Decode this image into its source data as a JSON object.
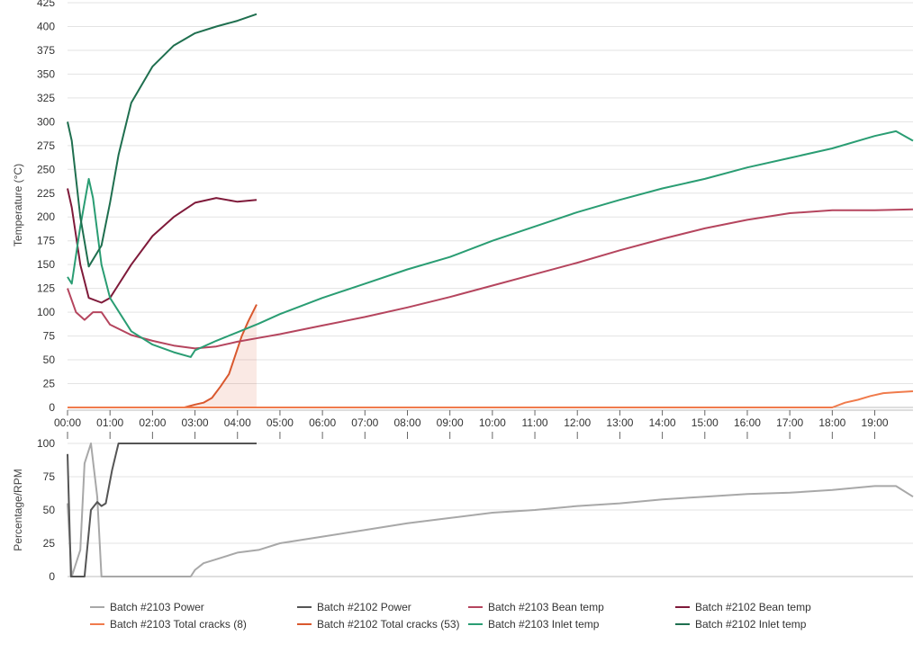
{
  "chart_data": [
    {
      "type": "line",
      "ylabel": "Temperature (°C)",
      "ylim": [
        0,
        425
      ],
      "yticks": [
        0,
        25,
        50,
        75,
        100,
        125,
        150,
        175,
        200,
        225,
        250,
        275,
        300,
        325,
        350,
        375,
        400,
        425
      ],
      "xlim_minutes": [
        0,
        19.9
      ],
      "xticks": [
        "00:00",
        "01:00",
        "02:00",
        "03:00",
        "04:00",
        "05:00",
        "06:00",
        "07:00",
        "08:00",
        "09:00",
        "10:00",
        "11:00",
        "12:00",
        "13:00",
        "14:00",
        "15:00",
        "16:00",
        "17:00",
        "18:00",
        "19:00"
      ],
      "grid": true,
      "series": [
        {
          "name": "Batch #2103 Bean temp",
          "color": "#b5455e",
          "x": [
            0,
            0.2,
            0.4,
            0.6,
            0.8,
            1,
            1.5,
            2,
            2.5,
            3,
            3.5,
            4,
            4.5,
            5,
            6,
            7,
            8,
            9,
            10,
            11,
            12,
            13,
            14,
            15,
            16,
            17,
            18,
            19,
            19.9
          ],
          "y": [
            125,
            100,
            92,
            100,
            100,
            87,
            76,
            70,
            65,
            62,
            64,
            69,
            73,
            77,
            86,
            95,
            105,
            116,
            128,
            140,
            152,
            165,
            177,
            188,
            197,
            204,
            207,
            207,
            208
          ]
        },
        {
          "name": "Batch #2102 Bean temp",
          "color": "#7f1a3a",
          "x": [
            0,
            0.1,
            0.3,
            0.5,
            0.8,
            1,
            1.5,
            2,
            2.5,
            3,
            3.5,
            4,
            4.45
          ],
          "y": [
            230,
            210,
            150,
            115,
            110,
            115,
            150,
            180,
            200,
            215,
            220,
            216,
            218
          ]
        },
        {
          "name": "Batch #2103 Inlet temp",
          "color": "#2a9d73",
          "x": [
            0,
            0.1,
            0.3,
            0.5,
            0.6,
            0.8,
            1,
            1.5,
            2,
            2.5,
            2.9,
            3,
            3.5,
            4,
            4.5,
            5,
            6,
            7,
            8,
            9,
            10,
            11,
            12,
            13,
            14,
            15,
            16,
            17,
            18,
            19,
            19.5,
            19.9
          ],
          "y": [
            137,
            130,
            190,
            240,
            220,
            150,
            115,
            80,
            66,
            58,
            53,
            60,
            70,
            79,
            88,
            98,
            115,
            130,
            145,
            158,
            175,
            190,
            205,
            218,
            230,
            240,
            252,
            262,
            272,
            285,
            290,
            280
          ]
        },
        {
          "name": "Batch #2102 Inlet temp",
          "color": "#1f6f4f",
          "x": [
            0,
            0.1,
            0.3,
            0.5,
            0.8,
            1,
            1.2,
            1.5,
            2,
            2.5,
            3,
            3.5,
            4,
            4.45
          ],
          "y": [
            300,
            280,
            200,
            148,
            170,
            215,
            265,
            320,
            358,
            380,
            393,
            400,
            406,
            413
          ]
        },
        {
          "name": "Batch #2103 Total cracks (8)",
          "color": "#f07b4c",
          "fill": false,
          "x": [
            0,
            17.9,
            18,
            18.3,
            18.6,
            18.9,
            19.2,
            19.5,
            19.9
          ],
          "y": [
            0,
            0,
            0,
            5,
            8,
            12,
            15,
            16,
            17
          ]
        },
        {
          "name": "Batch #2102 Total cracks (53)",
          "color": "#d9582e",
          "fill": true,
          "x": [
            0,
            2.75,
            3.0,
            3.2,
            3.4,
            3.6,
            3.8,
            3.95,
            4.1,
            4.25,
            4.45
          ],
          "y": [
            0,
            0,
            3,
            5,
            10,
            22,
            35,
            55,
            75,
            90,
            108
          ]
        }
      ]
    },
    {
      "type": "line",
      "ylabel": "Percentage/RPM",
      "ylim": [
        0,
        100
      ],
      "yticks": [
        0,
        25,
        50,
        75,
        100
      ],
      "xlim_minutes": [
        0,
        19.9
      ],
      "grid": true,
      "series": [
        {
          "name": "Batch #2103 Power",
          "color": "#a8a8a8",
          "x": [
            0,
            0.1,
            0.3,
            0.4,
            0.55,
            0.7,
            0.8,
            1,
            2,
            2.9,
            3,
            3.2,
            3.5,
            4,
            4.5,
            5,
            6,
            7,
            8,
            9,
            10,
            11,
            12,
            13,
            14,
            15,
            16,
            17,
            18,
            19,
            19.5,
            19.9
          ],
          "y": [
            55,
            0,
            20,
            85,
            100,
            60,
            0,
            0,
            0,
            0,
            5,
            10,
            13,
            18,
            20,
            25,
            30,
            35,
            40,
            44,
            48,
            50,
            53,
            55,
            58,
            60,
            62,
            63,
            65,
            68,
            68,
            60
          ]
        },
        {
          "name": "Batch #2102 Power",
          "color": "#555555",
          "x": [
            0,
            0.08,
            0.2,
            0.4,
            0.55,
            0.7,
            0.8,
            0.9,
            1.05,
            1.2,
            1.5,
            2,
            3,
            4.45
          ],
          "y": [
            92,
            0,
            0,
            0,
            50,
            56,
            53,
            55,
            80,
            100,
            100,
            100,
            100,
            100
          ]
        }
      ]
    }
  ],
  "legend": [
    {
      "label": "Batch #2103 Power",
      "color": "#a8a8a8"
    },
    {
      "label": "Batch #2102 Power",
      "color": "#555555"
    },
    {
      "label": "Batch #2103 Bean temp",
      "color": "#b5455e"
    },
    {
      "label": "Batch #2102 Bean temp",
      "color": "#7f1a3a"
    },
    {
      "label": "Batch #2103 Total cracks (8)",
      "color": "#f07b4c"
    },
    {
      "label": "Batch #2102 Total cracks (53)",
      "color": "#d9582e"
    },
    {
      "label": "Batch #2103 Inlet temp",
      "color": "#2a9d73"
    },
    {
      "label": "Batch #2102 Inlet temp",
      "color": "#1f6f4f"
    }
  ]
}
